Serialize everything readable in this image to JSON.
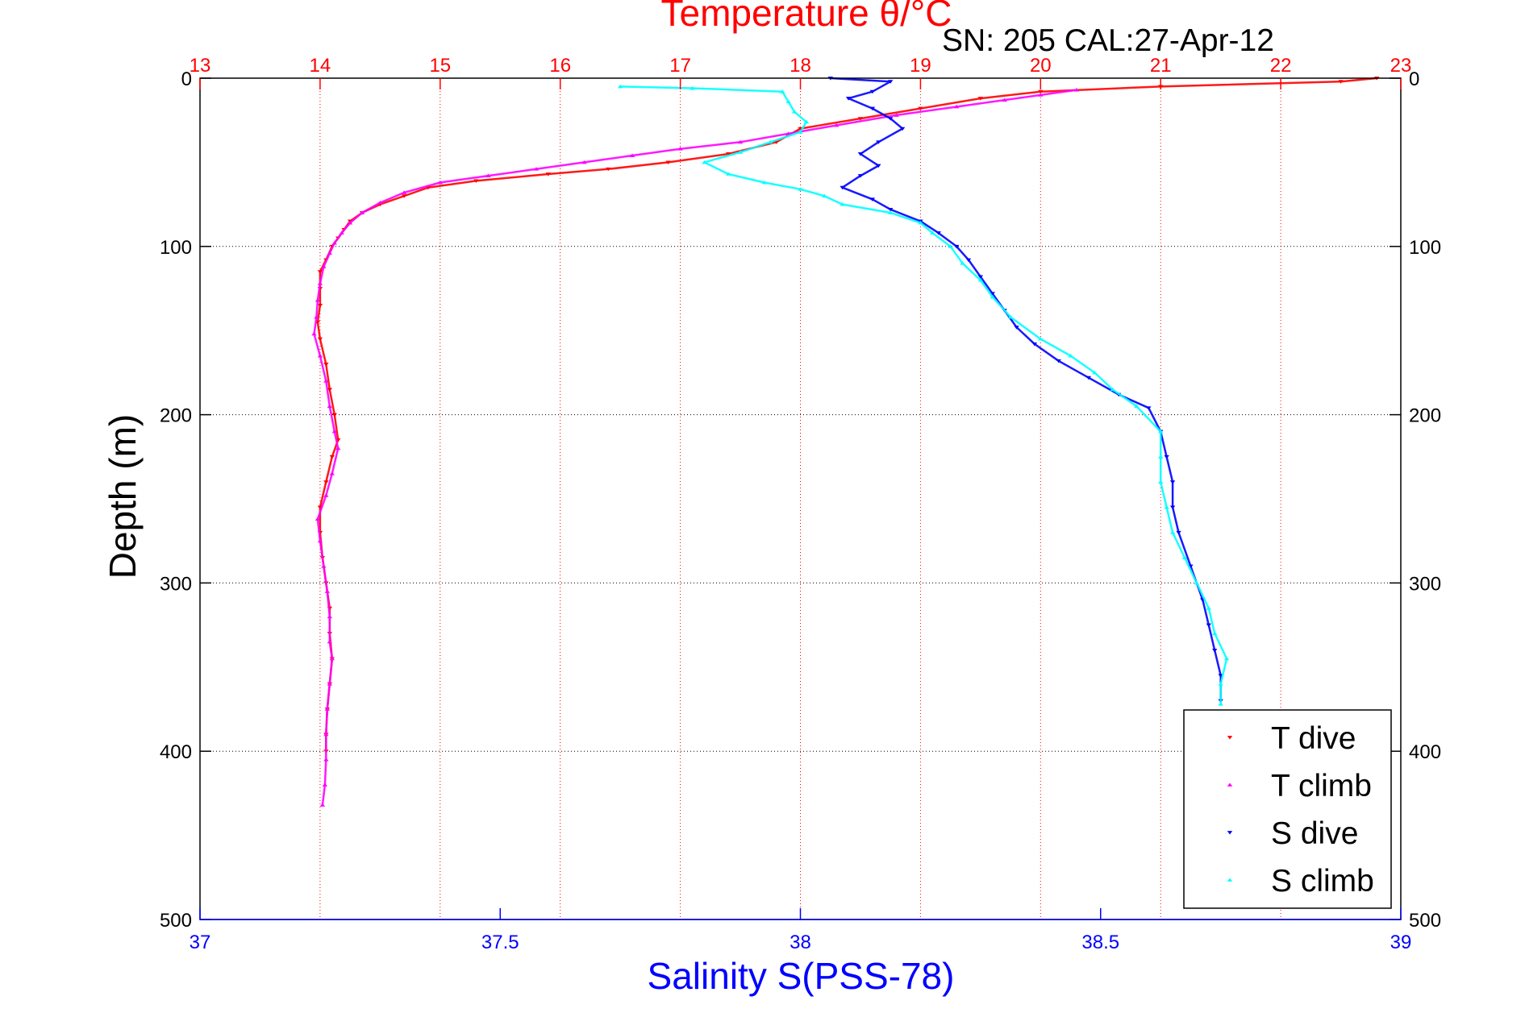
{
  "chart_data": {
    "type": "scatter",
    "title": "Temperature θ/°C",
    "subtitle": "SN: 205  CAL:27-Apr-12",
    "xlabel": "Salinity S(PSS-78)",
    "ylabel": "Depth (m)",
    "top_axis": {
      "range": [
        13,
        23
      ],
      "ticks": [
        13,
        14,
        15,
        16,
        17,
        18,
        19,
        20,
        21,
        22,
        23
      ],
      "color": "#ff0000"
    },
    "bottom_axis": {
      "range": [
        37,
        39
      ],
      "ticks": [
        "37",
        "37.5",
        "38",
        "38.5",
        "39"
      ],
      "tick_values": [
        37,
        37.5,
        38,
        38.5,
        39
      ],
      "color": "#0000ff"
    },
    "depth_axis": {
      "range": [
        0,
        500
      ],
      "inverted": true,
      "ticks": [
        0,
        100,
        200,
        300,
        400,
        500
      ]
    },
    "grid": true,
    "legend_position": "bottom-right",
    "series": [
      {
        "name": "T dive",
        "axis": "top",
        "color": "#ff0000",
        "marker": "triangle-down",
        "points": [
          [
            22.8,
            0
          ],
          [
            22.5,
            2
          ],
          [
            21.0,
            5
          ],
          [
            20.0,
            8
          ],
          [
            19.5,
            12
          ],
          [
            19.0,
            18
          ],
          [
            18.5,
            24
          ],
          [
            18.0,
            30
          ],
          [
            17.8,
            38
          ],
          [
            17.4,
            45
          ],
          [
            16.9,
            50
          ],
          [
            16.4,
            54
          ],
          [
            15.9,
            57
          ],
          [
            15.3,
            61
          ],
          [
            14.9,
            65
          ],
          [
            14.7,
            70
          ],
          [
            14.5,
            75
          ],
          [
            14.35,
            80
          ],
          [
            14.25,
            85
          ],
          [
            14.2,
            90
          ],
          [
            14.15,
            95
          ],
          [
            14.1,
            100
          ],
          [
            14.05,
            108
          ],
          [
            14.0,
            115
          ],
          [
            14.0,
            125
          ],
          [
            14.0,
            135
          ],
          [
            13.98,
            145
          ],
          [
            14.0,
            155
          ],
          [
            14.05,
            170
          ],
          [
            14.08,
            185
          ],
          [
            14.12,
            200
          ],
          [
            14.15,
            215
          ],
          [
            14.1,
            225
          ],
          [
            14.05,
            240
          ],
          [
            14.0,
            255
          ],
          [
            14.0,
            270
          ],
          [
            14.02,
            285
          ],
          [
            14.05,
            300
          ],
          [
            14.08,
            315
          ],
          [
            14.08,
            330
          ],
          [
            14.1,
            345
          ],
          [
            14.08,
            360
          ],
          [
            14.06,
            375
          ],
          [
            14.05,
            390
          ],
          [
            14.05,
            400
          ]
        ]
      },
      {
        "name": "T climb",
        "axis": "top",
        "color": "#ff00ff",
        "marker": "triangle-up",
        "points": [
          [
            20.3,
            7
          ],
          [
            20.0,
            10
          ],
          [
            19.7,
            13
          ],
          [
            19.3,
            17
          ],
          [
            18.8,
            22
          ],
          [
            18.3,
            28
          ],
          [
            17.9,
            33
          ],
          [
            17.5,
            38
          ],
          [
            17.0,
            42
          ],
          [
            16.6,
            46
          ],
          [
            16.2,
            50
          ],
          [
            15.8,
            54
          ],
          [
            15.4,
            58
          ],
          [
            15.0,
            62
          ],
          [
            14.7,
            68
          ],
          [
            14.5,
            74
          ],
          [
            14.35,
            80
          ],
          [
            14.25,
            86
          ],
          [
            14.18,
            92
          ],
          [
            14.12,
            98
          ],
          [
            14.08,
            104
          ],
          [
            14.03,
            112
          ],
          [
            14.0,
            122
          ],
          [
            13.98,
            132
          ],
          [
            13.97,
            142
          ],
          [
            13.95,
            152
          ],
          [
            14.0,
            165
          ],
          [
            14.05,
            180
          ],
          [
            14.08,
            195
          ],
          [
            14.12,
            210
          ],
          [
            14.15,
            220
          ],
          [
            14.1,
            235
          ],
          [
            14.05,
            248
          ],
          [
            13.98,
            262
          ],
          [
            14.0,
            275
          ],
          [
            14.03,
            290
          ],
          [
            14.06,
            305
          ],
          [
            14.08,
            320
          ],
          [
            14.08,
            335
          ],
          [
            14.1,
            345
          ],
          [
            14.08,
            360
          ],
          [
            14.06,
            375
          ],
          [
            14.05,
            390
          ],
          [
            14.05,
            405
          ],
          [
            14.04,
            420
          ],
          [
            14.02,
            432
          ]
        ]
      },
      {
        "name": "S dive",
        "axis": "bottom",
        "color": "#0000ff",
        "marker": "triangle-down",
        "points": [
          [
            38.05,
            0
          ],
          [
            38.15,
            2
          ],
          [
            38.12,
            8
          ],
          [
            38.08,
            12
          ],
          [
            38.12,
            18
          ],
          [
            38.15,
            24
          ],
          [
            38.17,
            30
          ],
          [
            38.13,
            38
          ],
          [
            38.1,
            45
          ],
          [
            38.13,
            52
          ],
          [
            38.1,
            58
          ],
          [
            38.07,
            65
          ],
          [
            38.12,
            72
          ],
          [
            38.15,
            78
          ],
          [
            38.2,
            85
          ],
          [
            38.23,
            92
          ],
          [
            38.26,
            100
          ],
          [
            38.28,
            108
          ],
          [
            38.3,
            118
          ],
          [
            38.32,
            128
          ],
          [
            38.34,
            138
          ],
          [
            38.36,
            148
          ],
          [
            38.39,
            158
          ],
          [
            38.43,
            168
          ],
          [
            38.48,
            178
          ],
          [
            38.53,
            188
          ],
          [
            38.58,
            196
          ],
          [
            38.6,
            210
          ],
          [
            38.61,
            225
          ],
          [
            38.62,
            240
          ],
          [
            38.62,
            255
          ],
          [
            38.63,
            270
          ],
          [
            38.65,
            290
          ],
          [
            38.67,
            310
          ],
          [
            38.68,
            325
          ],
          [
            38.69,
            340
          ],
          [
            38.7,
            355
          ],
          [
            38.7,
            370
          ]
        ]
      },
      {
        "name": "S climb",
        "axis": "bottom",
        "color": "#00ffff",
        "marker": "triangle-up",
        "points": [
          [
            37.7,
            5
          ],
          [
            37.82,
            6
          ],
          [
            37.97,
            8
          ],
          [
            37.98,
            14
          ],
          [
            37.99,
            20
          ],
          [
            38.01,
            26
          ],
          [
            38.0,
            32
          ],
          [
            37.95,
            38
          ],
          [
            37.9,
            44
          ],
          [
            37.84,
            50
          ],
          [
            37.88,
            57
          ],
          [
            37.94,
            62
          ],
          [
            38.0,
            66
          ],
          [
            38.04,
            70
          ],
          [
            38.07,
            75
          ],
          [
            38.15,
            80
          ],
          [
            38.2,
            86
          ],
          [
            38.22,
            92
          ],
          [
            38.25,
            100
          ],
          [
            38.27,
            110
          ],
          [
            38.3,
            120
          ],
          [
            38.32,
            130
          ],
          [
            38.35,
            142
          ],
          [
            38.4,
            155
          ],
          [
            38.45,
            165
          ],
          [
            38.49,
            175
          ],
          [
            38.52,
            185
          ],
          [
            38.56,
            195
          ],
          [
            38.6,
            210
          ],
          [
            38.6,
            225
          ],
          [
            38.6,
            240
          ],
          [
            38.61,
            255
          ],
          [
            38.62,
            270
          ],
          [
            38.64,
            285
          ],
          [
            38.66,
            300
          ],
          [
            38.68,
            315
          ],
          [
            38.69,
            330
          ],
          [
            38.71,
            345
          ],
          [
            38.7,
            360
          ],
          [
            38.7,
            372
          ]
        ]
      }
    ]
  }
}
